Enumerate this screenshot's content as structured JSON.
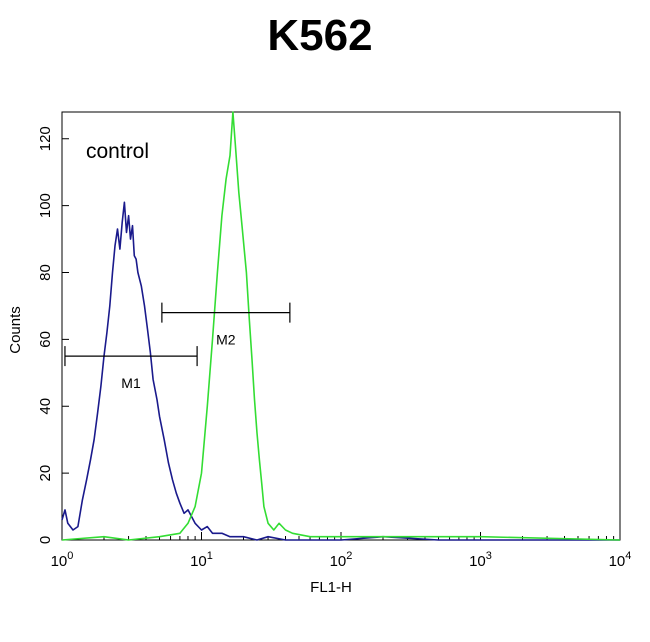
{
  "chart_data": {
    "type": "line",
    "title": "K562",
    "xlabel": "FL1-H",
    "ylabel": "Counts",
    "x_scale": "log",
    "xlim": [
      1,
      10000
    ],
    "ylim": [
      0,
      128
    ],
    "x_ticks": [
      {
        "value": 1,
        "base": "10",
        "exp": "0"
      },
      {
        "value": 10,
        "base": "10",
        "exp": "1"
      },
      {
        "value": 100,
        "base": "10",
        "exp": "2"
      },
      {
        "value": 1000,
        "base": "10",
        "exp": "3"
      },
      {
        "value": 10000,
        "base": "10",
        "exp": "4"
      }
    ],
    "y_ticks": [
      {
        "value": 0,
        "label": "0"
      },
      {
        "value": 20,
        "label": "20"
      },
      {
        "value": 40,
        "label": "40"
      },
      {
        "value": 60,
        "label": "60"
      },
      {
        "value": 80,
        "label": "80"
      },
      {
        "value": 100,
        "label": "100"
      },
      {
        "value": 120,
        "label": "120"
      }
    ],
    "annotation": "control",
    "series": [
      {
        "color": "#1a1a8c",
        "x": [
          1.0,
          1.05,
          1.1,
          1.2,
          1.3,
          1.4,
          1.5,
          1.6,
          1.7,
          1.8,
          1.9,
          2.0,
          2.1,
          2.2,
          2.3,
          2.4,
          2.5,
          2.6,
          2.7,
          2.8,
          2.9,
          3.0,
          3.1,
          3.2,
          3.3,
          3.4,
          3.5,
          3.7,
          3.9,
          4.1,
          4.3,
          4.5,
          4.8,
          5.0,
          5.4,
          5.8,
          6.2,
          6.6,
          7.0,
          7.5,
          8.0,
          9.0,
          10.0,
          11.0,
          12.0,
          14.0,
          16.0,
          20.0,
          25.0,
          30.0,
          40.0,
          60.0,
          100.0,
          200.0,
          500.0,
          1000.0,
          3000.0,
          10000.0
        ],
        "y": [
          6,
          9,
          5,
          3,
          4,
          12,
          18,
          24,
          30,
          38,
          46,
          55,
          62,
          70,
          80,
          88,
          93,
          87,
          95,
          101,
          92,
          97,
          90,
          94,
          85,
          84,
          80,
          76,
          70,
          63,
          56,
          48,
          42,
          37,
          30,
          23,
          18,
          14,
          11,
          8,
          9,
          5,
          3,
          4,
          2,
          2,
          1,
          1,
          0,
          1,
          0,
          0,
          0,
          1,
          0,
          0,
          0,
          0
        ]
      },
      {
        "color": "#33dd33",
        "x": [
          1.0,
          2.0,
          3.0,
          5.0,
          7.0,
          8.0,
          9.0,
          10.0,
          11.0,
          12.0,
          13.0,
          14.0,
          15.0,
          16.0,
          16.8,
          17.5,
          18.5,
          19.5,
          21.0,
          22.0,
          23.0,
          24.0,
          25.0,
          26.0,
          27.0,
          28.0,
          30.0,
          33.0,
          36.0,
          40.0,
          45.0,
          60.0,
          100.0,
          1000.0,
          10000.0
        ],
        "y": [
          0,
          1,
          0,
          1,
          2,
          5,
          10,
          20,
          40,
          60,
          80,
          97,
          108,
          115,
          128,
          118,
          104,
          94,
          80,
          66,
          54,
          42,
          32,
          24,
          17,
          10,
          5,
          3,
          5,
          3,
          2,
          1,
          1,
          1,
          0
        ]
      }
    ],
    "markers": [
      {
        "label": "M1",
        "x_start": 1.05,
        "x_end": 9.3,
        "y": 55
      },
      {
        "label": "M2",
        "x_start": 5.2,
        "x_end": 43,
        "y": 68
      }
    ]
  }
}
